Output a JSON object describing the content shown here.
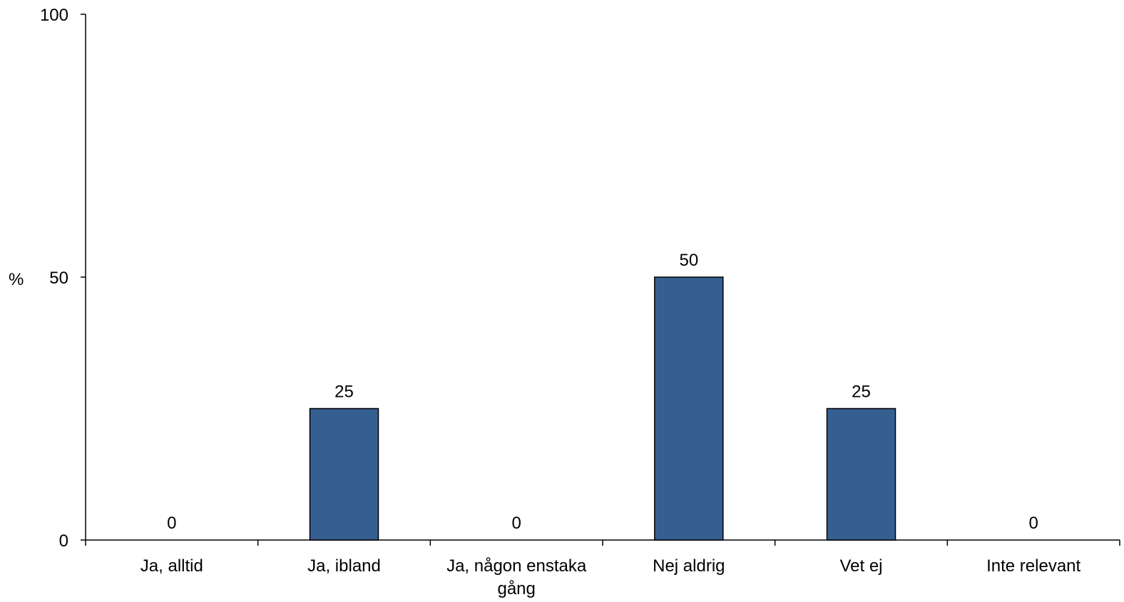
{
  "chart_data": {
    "type": "bar",
    "categories": [
      [
        "Ja, alltid"
      ],
      [
        "Ja, ibland"
      ],
      [
        "Ja, någon enstaka",
        "gång"
      ],
      [
        "Nej aldrig"
      ],
      [
        "Vet ej"
      ],
      [
        "Inte relevant"
      ]
    ],
    "values": [
      0,
      25,
      0,
      50,
      25,
      0
    ],
    "data_labels": [
      "0",
      "25",
      "0",
      "50",
      "25",
      "0"
    ],
    "ylabel": "%",
    "ylim": [
      0,
      100
    ],
    "yticks": [
      "0",
      "50",
      "100"
    ],
    "bar_color": "#365F91",
    "grid": false,
    "legend": "none"
  }
}
